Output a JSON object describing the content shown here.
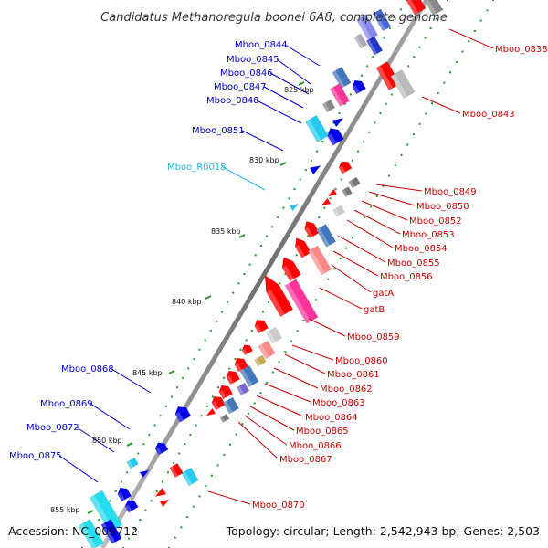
{
  "title": "Candidatus Methanoregula boonei 6A8, complete genome",
  "accession": "Accession: NC_009712",
  "topology": "Topology: circular; Length: 2,542,943 bp; Genes: 2,503",
  "colors": {
    "backbone": "#808080",
    "left_label": "#0000cc",
    "left_rna_label": "#22bbdd",
    "right_label": "#cc0000",
    "forward_cds": "#ff0000",
    "reverse_cds": "#0000ee",
    "ticks": "#229922"
  },
  "kbp_labels": [
    "825 kbp",
    "830 kbp",
    "835 kbp",
    "840 kbp",
    "845 kbp",
    "850 kbp",
    "855 kbp"
  ],
  "left_labels": [
    "Mboo_0844",
    "Mboo_0845",
    "Mboo_0846",
    "Mboo_0847",
    "Mboo_0848",
    "Mboo_0851",
    "Mboo_R0018",
    "Mboo_0868",
    "Mboo_0869",
    "Mboo_0872",
    "Mboo_0875"
  ],
  "right_labels": [
    "Mboo_0838",
    "Mboo_0843",
    "Mboo_0849",
    "Mboo_0850",
    "Mboo_0852",
    "Mboo_0853",
    "Mboo_0854",
    "Mboo_0855",
    "Mboo_0856",
    "gatA",
    "gatB",
    "Mboo_0859",
    "Mboo_0860",
    "Mboo_0861",
    "Mboo_0862",
    "Mboo_0863",
    "Mboo_0864",
    "Mboo_0865",
    "Mboo_0866",
    "Mboo_0867",
    "Mboo_0870"
  ]
}
